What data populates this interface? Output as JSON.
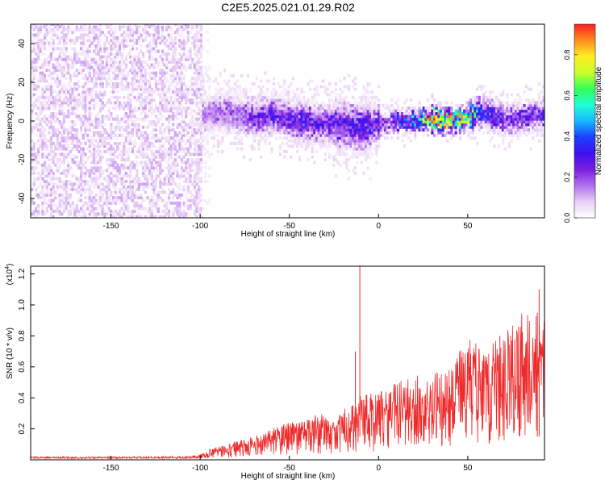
{
  "title": "C2E5.2025.021.01.29.R02",
  "colors": {
    "snr_line": "#ee2b2b",
    "colormap": [
      "#ffffff",
      "#e8cff4",
      "#b070f0",
      "#7a1fe0",
      "#3e10ee",
      "#1a40ff",
      "#18b8ff",
      "#20ffd8",
      "#33ff55",
      "#c8ff2a",
      "#ffee22",
      "#ff8a1e",
      "#ff2222"
    ]
  },
  "chart_data": [
    {
      "type": "heatmap",
      "xlabel": "Height of straight line (km)",
      "ylabel": "Frequency (Hz)",
      "xlim": [
        -195,
        93
      ],
      "ylim": [
        -50,
        50
      ],
      "x_ticks": [
        -150,
        -100,
        -50,
        0,
        50
      ],
      "y_ticks": [
        -40,
        -20,
        0,
        20,
        40
      ],
      "colorbar": {
        "label": "Normalized spectral amplitude",
        "range": [
          0,
          0.95
        ],
        "ticks": [
          0.0,
          0.2,
          0.4,
          0.6,
          0.8
        ]
      },
      "ridge": {
        "x": [
          -100,
          -90,
          -80,
          -70,
          -60,
          -55,
          -50,
          -40,
          -30,
          -20,
          -10,
          0,
          10,
          20,
          30,
          40,
          50,
          55,
          60,
          70,
          80,
          90
        ],
        "frequency": [
          2,
          4,
          3,
          1,
          3,
          2,
          0,
          -1,
          -2,
          -3,
          -4,
          -2,
          -1,
          -1,
          0,
          0,
          1,
          4,
          3,
          0,
          1,
          3
        ],
        "amplitude": [
          0.15,
          0.2,
          0.2,
          0.25,
          0.3,
          0.28,
          0.3,
          0.3,
          0.28,
          0.3,
          0.3,
          0.3,
          0.35,
          0.55,
          0.9,
          0.95,
          0.8,
          0.5,
          0.35,
          0.3,
          0.3,
          0.3
        ]
      }
    },
    {
      "type": "line",
      "xlabel": "Height of straight line (km)",
      "ylabel": "SNR (10 * v/v)",
      "scale_note": "(x10",
      "scale_exp": "4",
      "xlim": [
        -195,
        93
      ],
      "ylim": [
        0,
        1.25
      ],
      "x_ticks": [
        -150,
        -100,
        -50,
        0,
        50
      ],
      "y_ticks": [
        0.2,
        0.4,
        0.6,
        0.8,
        1.0,
        1.2
      ],
      "envelope": {
        "x": [
          -195,
          -150,
          -110,
          -100,
          -90,
          -80,
          -70,
          -60,
          -50,
          -40,
          -30,
          -20,
          -10,
          0,
          10,
          20,
          30,
          40,
          50,
          60,
          70,
          80,
          93
        ],
        "max": [
          0.02,
          0.02,
          0.025,
          0.04,
          0.09,
          0.12,
          0.15,
          0.2,
          0.24,
          0.28,
          0.3,
          0.32,
          0.42,
          0.44,
          0.5,
          0.55,
          0.55,
          0.6,
          0.8,
          0.72,
          0.85,
          0.95,
          0.95
        ]
      },
      "spikes": [
        {
          "x": -10.5,
          "value": 1.25
        },
        {
          "x": -13,
          "value": 0.7
        },
        {
          "x": 90,
          "value": 1.1
        },
        {
          "x": 89,
          "value": 0.95
        },
        {
          "x": 68,
          "value": 0.8
        }
      ]
    }
  ]
}
